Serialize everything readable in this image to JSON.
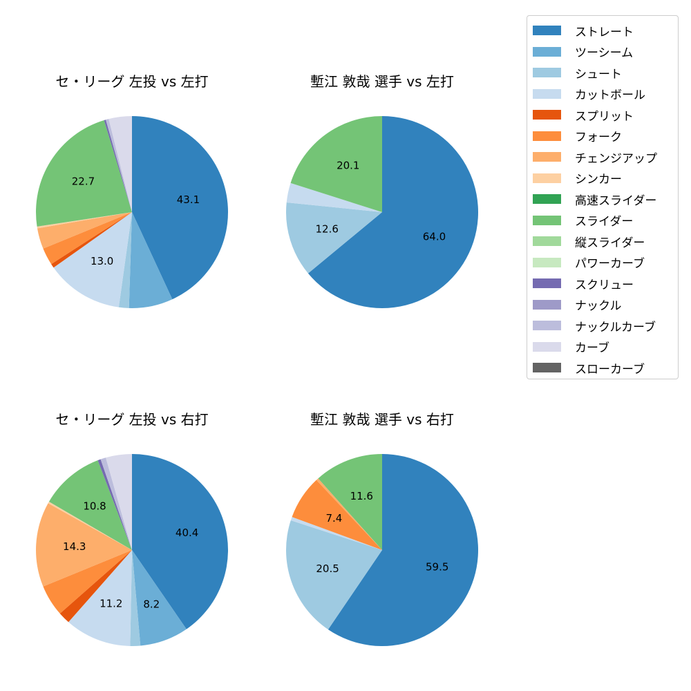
{
  "legend": {
    "items": [
      {
        "label": "ストレート",
        "color": "#3182bd"
      },
      {
        "label": "ツーシーム",
        "color": "#6baed6"
      },
      {
        "label": "シュート",
        "color": "#9ecae1"
      },
      {
        "label": "カットボール",
        "color": "#c6dbef"
      },
      {
        "label": "スプリット",
        "color": "#e6550d"
      },
      {
        "label": "フォーク",
        "color": "#fd8d3c"
      },
      {
        "label": "チェンジアップ",
        "color": "#fdae6b"
      },
      {
        "label": "シンカー",
        "color": "#fdd0a2"
      },
      {
        "label": "高速スライダー",
        "color": "#31a354"
      },
      {
        "label": "スライダー",
        "color": "#74c476"
      },
      {
        "label": "縦スライダー",
        "color": "#a1d99b"
      },
      {
        "label": "パワーカーブ",
        "color": "#c7e9c0"
      },
      {
        "label": "スクリュー",
        "color": "#756bb1"
      },
      {
        "label": "ナックル",
        "color": "#9e9ac8"
      },
      {
        "label": "ナックルカーブ",
        "color": "#bcbddc"
      },
      {
        "label": "カーブ",
        "color": "#dadaeb"
      },
      {
        "label": "スローカーブ",
        "color": "#636363"
      }
    ]
  },
  "chart_data": [
    {
      "type": "pie",
      "title": "セ・リーグ 左投 vs 左打",
      "categories": [
        "ストレート",
        "ツーシーム",
        "シュート",
        "カットボール",
        "スプリット",
        "フォーク",
        "チェンジアップ",
        "シンカー",
        "スライダー",
        "スクリュー",
        "ナックルカーブ",
        "カーブ"
      ],
      "values": [
        43.1,
        7.4,
        1.7,
        13.0,
        0.7,
        2.9,
        3.5,
        0.3,
        22.7,
        0.3,
        0.5,
        3.9
      ],
      "labels": [
        "43.1",
        "",
        "",
        "13.0",
        "",
        "",
        "",
        "",
        "22.7",
        "",
        "",
        ""
      ]
    },
    {
      "type": "pie",
      "title": "塹江 敦哉 選手 vs 左打",
      "categories": [
        "ストレート",
        "シュート",
        "カットボール",
        "スライダー"
      ],
      "values": [
        64.0,
        12.6,
        3.3,
        20.1
      ],
      "labels": [
        "64.0",
        "12.6",
        "",
        "20.1"
      ]
    },
    {
      "type": "pie",
      "title": "セ・リーグ 左投 vs 右打",
      "categories": [
        "ストレート",
        "ツーシーム",
        "シュート",
        "カットボール",
        "スプリット",
        "フォーク",
        "チェンジアップ",
        "シンカー",
        "スライダー",
        "スクリュー",
        "ナックルカーブ",
        "カーブ"
      ],
      "values": [
        40.4,
        8.2,
        1.7,
        11.2,
        2.0,
        5.3,
        14.3,
        0.3,
        10.8,
        0.5,
        0.9,
        4.4
      ],
      "labels": [
        "40.4",
        "8.2",
        "",
        "11.2",
        "",
        "",
        "14.3",
        "",
        "10.8",
        "",
        "",
        ""
      ]
    },
    {
      "type": "pie",
      "title": "塹江 敦哉 選手 vs 右打",
      "categories": [
        "ストレート",
        "シュート",
        "カットボール",
        "フォーク",
        "チェンジアップ",
        "スライダー"
      ],
      "values": [
        59.5,
        20.5,
        0.6,
        7.4,
        0.4,
        11.6
      ],
      "labels": [
        "59.5",
        "20.5",
        "",
        "7.4",
        "",
        "11.6"
      ]
    }
  ],
  "panels": [
    {
      "title": "セ・リーグ 左投 vs 左打"
    },
    {
      "title": "塹江 敦哉 選手 vs 左打"
    },
    {
      "title": "セ・リーグ 左投 vs 右打"
    },
    {
      "title": "塹江 敦哉 選手 vs 右打"
    }
  ]
}
